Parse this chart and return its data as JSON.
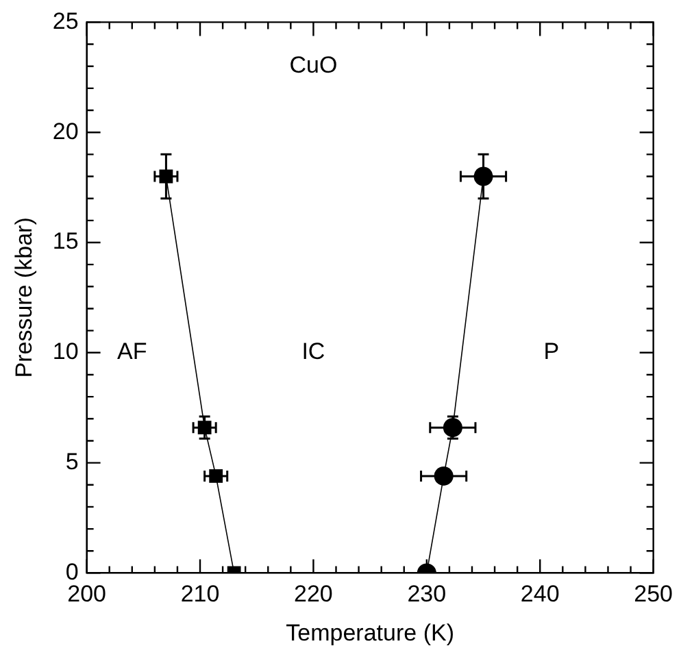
{
  "chart_data": {
    "type": "line",
    "xlabel": "Temperature (K)",
    "ylabel": "Pressure (kbar)",
    "xlim": [
      200,
      250
    ],
    "xticks": [
      200,
      210,
      220,
      230,
      240,
      250
    ],
    "ylim": [
      0,
      25
    ],
    "yticks": [
      0,
      5,
      10,
      15,
      20,
      25
    ],
    "grid": false,
    "legend": false,
    "series": [
      {
        "marker": "square",
        "color": "#000000",
        "x": [
          207,
          210.4,
          211.4,
          213
        ],
        "values": [
          18,
          6.6,
          4.4,
          0
        ],
        "errors": [
          1,
          0.5,
          null,
          null
        ],
        "xerrors": [
          1,
          1,
          1,
          null
        ]
      },
      {
        "marker": "circle",
        "color": "#000000",
        "x": [
          235,
          232.3,
          231.5,
          230
        ],
        "values": [
          18,
          6.6,
          4.4,
          0
        ],
        "errors": [
          1,
          0.5,
          null,
          null
        ],
        "xerrors": [
          2,
          2,
          2,
          null
        ]
      }
    ],
    "annotations": [
      "CuO",
      "AF",
      "IC",
      "P"
    ]
  }
}
